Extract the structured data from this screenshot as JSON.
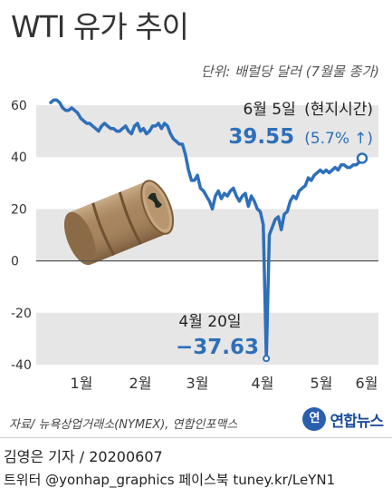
{
  "title": "WTI 유가 추이",
  "unit_note": "단위: 배럴당 달러 (7월물 종가)",
  "source": "자료/ 뉴욕상업거래소(NYMEX), 연합인포맥스",
  "logo": {
    "mark": "연",
    "text": "연합뉴스"
  },
  "credit": "김영은 기자 / 20200607",
  "social": "트위터 @yonhap_graphics  페이스북 tuney.kr/LeYN1",
  "colors": {
    "line": "#2e6fba",
    "band": "#e6e6e6",
    "annotation": "#2e6fba",
    "zero_line": "#555555"
  },
  "chart_data": {
    "type": "line",
    "y_ticks": [
      "60",
      "40",
      "20",
      "0",
      "-20",
      "-40"
    ],
    "ylim": [
      -40,
      60
    ],
    "x_labels": [
      "1월",
      "2월",
      "3월",
      "4월",
      "5월",
      "6월"
    ],
    "series": [
      {
        "values": [
          61,
          62,
          62,
          61,
          59,
          58,
          58,
          59,
          58,
          57,
          55,
          54,
          53,
          53,
          52,
          51,
          50,
          52,
          53,
          52,
          51,
          51,
          50,
          50,
          51,
          52,
          50,
          49,
          52,
          53,
          50,
          51,
          49,
          50,
          52,
          52,
          53,
          51,
          53,
          52,
          49,
          47,
          46,
          45,
          45,
          41,
          35,
          31,
          31,
          33,
          28,
          27,
          25,
          23,
          20,
          25,
          27,
          24,
          26,
          25,
          27,
          28,
          25,
          23,
          25,
          26,
          21,
          25,
          23,
          20,
          19,
          14,
          -37.63,
          10,
          13,
          16,
          17,
          12,
          18,
          19,
          23,
          25,
          24,
          27,
          28,
          29,
          32,
          31,
          33,
          34,
          35,
          34,
          35,
          34,
          35,
          36,
          35,
          37,
          37,
          36,
          36,
          37,
          37,
          38,
          39.55
        ]
      }
    ],
    "annotations": {
      "latest": {
        "date": "6월 5일",
        "note": "(현지시간)",
        "value": "39.55",
        "change": "(5.7%",
        "arrow": "↑)"
      },
      "low": {
        "date": "4월 20일",
        "value": "−37.63"
      }
    }
  }
}
